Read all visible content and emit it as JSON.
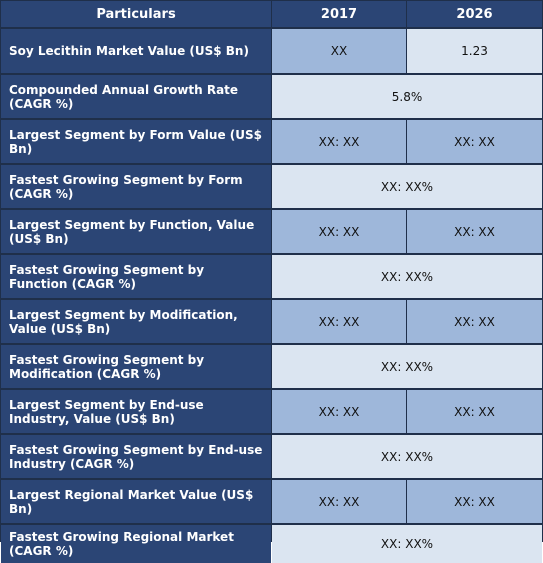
{
  "header": {
    "col_particulars": "Particulars",
    "col_2017": "2017",
    "col_2026": "2026"
  },
  "rows": [
    {
      "label": "Soy Lecithin Market Value (US$ Bn)",
      "v2017": "XX",
      "v2026": "1.23"
    },
    {
      "label": "Compounded Annual Growth Rate (CAGR %)",
      "merged": "5.8%"
    },
    {
      "label": "Largest Segment by Form Value (US$ Bn)",
      "v2017": "XX: XX",
      "v2026": "XX:  XX"
    },
    {
      "label": "Fastest Growing Segment by Form (CAGR %)",
      "merged": "XX:  XX%"
    },
    {
      "label": "Largest Segment by Function, Value (US$ Bn)",
      "v2017": "XX: XX",
      "v2026": "XX:  XX"
    },
    {
      "label": "Fastest Growing Segment by Function (CAGR %)",
      "merged": "XX:  XX%"
    },
    {
      "label": "Largest Segment by Modification, Value (US$ Bn)",
      "v2017": "XX: XX",
      "v2026": "XX:  XX"
    },
    {
      "label": "Fastest Growing Segment by Modification (CAGR %)",
      "merged": "XX:  XX%"
    },
    {
      "label": "Largest Segment by End-use Industry, Value (US$ Bn)",
      "v2017": "XX: XX",
      "v2026": "XX: XX"
    },
    {
      "label": "Fastest Growing Segment by End-use Industry (CAGR %)",
      "merged": "XX:  XX%"
    },
    {
      "label": "Largest Regional Market Value (US$ Bn)",
      "v2017": "XX: XX",
      "v2026": "XX: XX"
    },
    {
      "label": "Fastest Growing Regional Market (CAGR %)",
      "merged": "XX: XX%"
    }
  ],
  "colors": {
    "header_bg": "#2b4575",
    "value_dark_bg": "#9eb7da",
    "value_light_bg": "#dbe5f1",
    "border": "#1f2f4a"
  }
}
